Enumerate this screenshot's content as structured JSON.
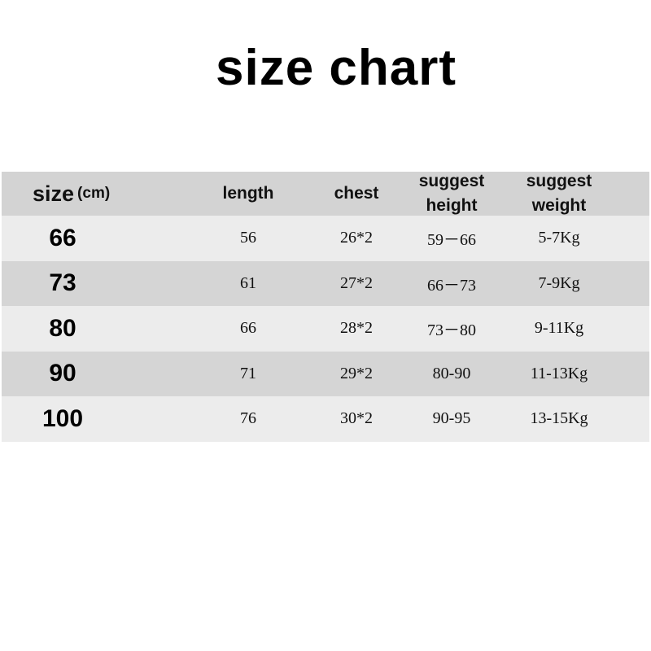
{
  "title": "size chart",
  "table": {
    "headers": {
      "size": "size",
      "size_unit": "(cm)",
      "length": "length",
      "chest": "chest",
      "height_1": "suggest",
      "height_2": "height",
      "weight_1": "suggest",
      "weight_2": "weight"
    },
    "rows": [
      {
        "size": "66",
        "length": "56",
        "chest": "26*2",
        "height": "59－66",
        "weight": "5-7Kg"
      },
      {
        "size": "73",
        "length": "61",
        "chest": "27*2",
        "height": "66－73",
        "weight": "7-9Kg"
      },
      {
        "size": "80",
        "length": "66",
        "chest": "28*2",
        "height": "73－80",
        "weight": "9-11Kg"
      },
      {
        "size": "90",
        "length": "71",
        "chest": "29*2",
        "height": "80-90",
        "weight": "11-13Kg"
      },
      {
        "size": "100",
        "length": "76",
        "chest": "30*2",
        "height": "90-95",
        "weight": "13-15Kg"
      }
    ],
    "colors": {
      "header": "#d3d3d3",
      "row_light": "#ececec",
      "row_dark": "#d5d5d5"
    }
  }
}
